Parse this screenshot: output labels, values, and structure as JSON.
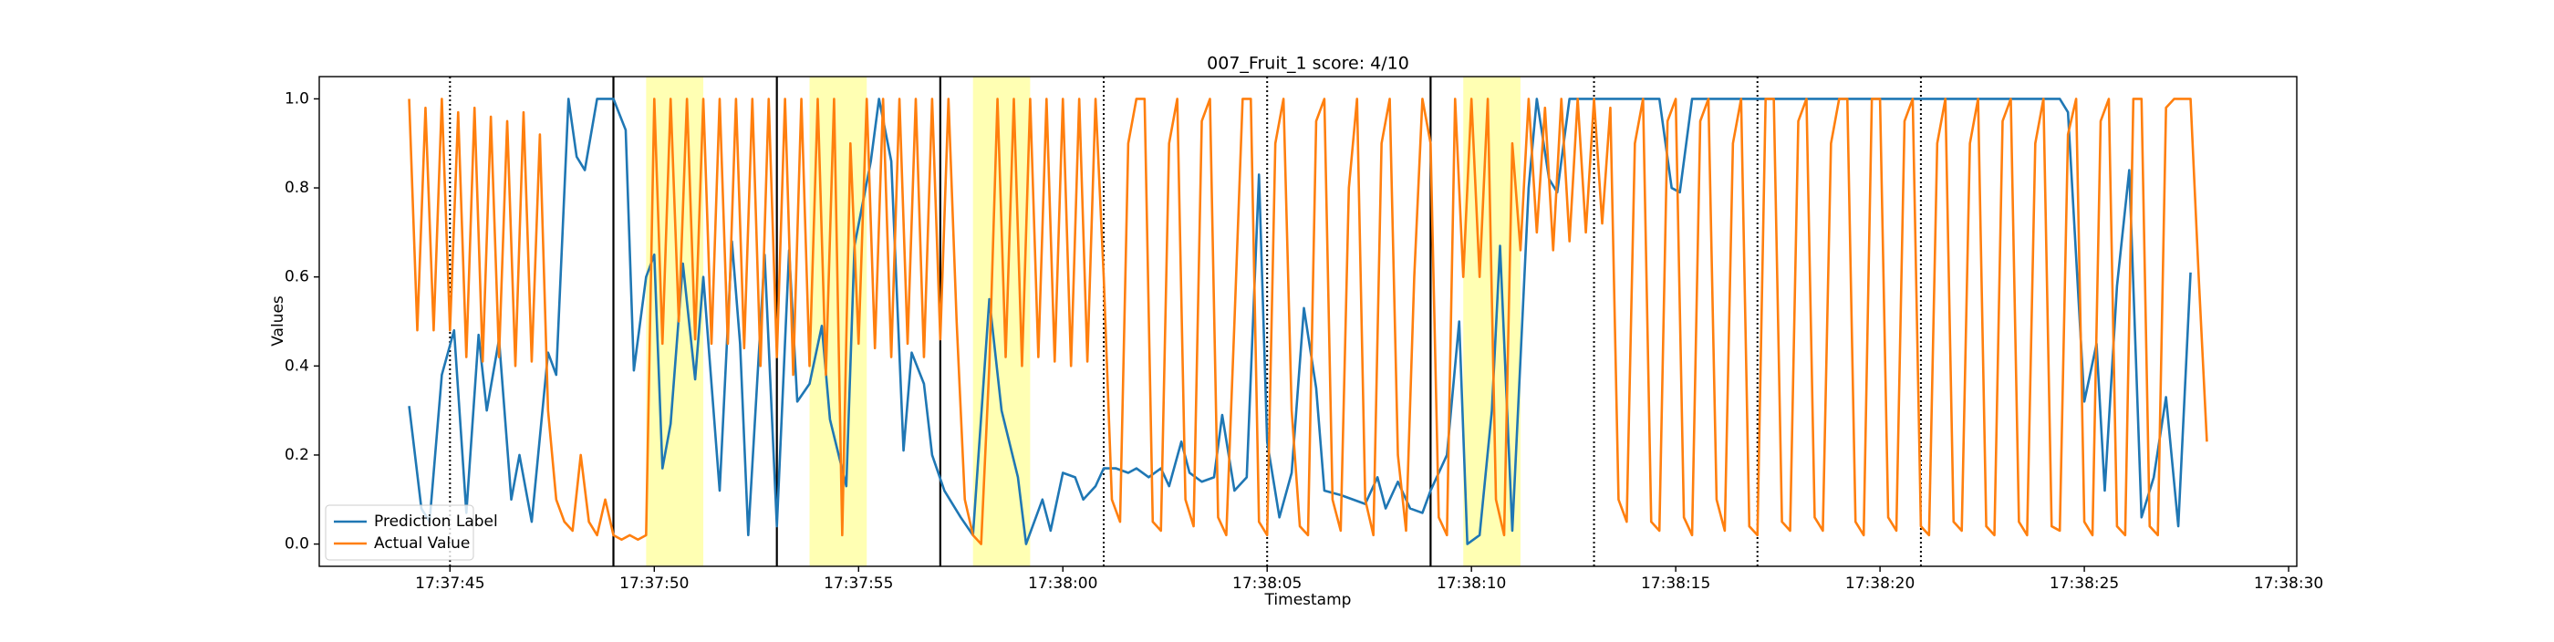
{
  "chart_data": {
    "type": "line",
    "title": "007_Fruit_1 score: 4/10",
    "x_label": "Timestamp",
    "y_label": "Values",
    "xlim": [
      63461.8,
      63510.2
    ],
    "ylim": [
      -0.05,
      1.05
    ],
    "xticks": [
      {
        "value": 63465,
        "label": "17:37:45"
      },
      {
        "value": 63470,
        "label": "17:37:50"
      },
      {
        "value": 63475,
        "label": "17:37:55"
      },
      {
        "value": 63480,
        "label": "17:38:00"
      },
      {
        "value": 63485,
        "label": "17:38:05"
      },
      {
        "value": 63490,
        "label": "17:38:10"
      },
      {
        "value": 63495,
        "label": "17:38:15"
      },
      {
        "value": 63500,
        "label": "17:38:20"
      },
      {
        "value": 63505,
        "label": "17:38:25"
      },
      {
        "value": 63510,
        "label": "17:38:30"
      }
    ],
    "yticks": [
      {
        "value": 0,
        "label": "0.0"
      },
      0.2,
      0.4,
      0.6,
      0.8,
      {
        "value": 1,
        "label": "1.0"
      }
    ],
    "grid": false,
    "legend": "lower left",
    "span_color": "#ffff99",
    "spans": [
      [
        63469.8,
        63471.2
      ],
      [
        63473.8,
        63475.2
      ],
      [
        63477.8,
        63479.2
      ],
      [
        63489.8,
        63491.2
      ]
    ],
    "vlines": [
      {
        "x": 63465,
        "style": "dotted"
      },
      {
        "x": 63469,
        "style": "solid"
      },
      {
        "x": 63473,
        "style": "solid"
      },
      {
        "x": 63477,
        "style": "solid"
      },
      {
        "x": 63481,
        "style": "dotted"
      },
      {
        "x": 63485,
        "style": "dotted"
      },
      {
        "x": 63489,
        "style": "solid"
      },
      {
        "x": 63493,
        "style": "dotted"
      },
      {
        "x": 63497,
        "style": "dotted"
      },
      {
        "x": 63501,
        "style": "dotted"
      }
    ],
    "series": [
      {
        "name": "Prediction Label",
        "color": "#1f77b4",
        "x": [
          63464.0,
          63464.3,
          63464.5,
          63464.8,
          63465.1,
          63465.4,
          63465.7,
          63465.9,
          63466.2,
          63466.5,
          63466.7,
          63467.0,
          63467.4,
          63467.6,
          63467.9,
          63468.1,
          63468.3,
          63468.6,
          63469.0,
          63469.3,
          63469.5,
          63469.8,
          63470.0,
          63470.2,
          63470.4,
          63470.7,
          63471.0,
          63471.2,
          63471.6,
          63471.9,
          63472.1,
          63472.3,
          63472.7,
          63473.0,
          63473.3,
          63473.5,
          63473.8,
          63474.1,
          63474.3,
          63474.7,
          63474.9,
          63475.3,
          63475.5,
          63475.8,
          63476.1,
          63476.3,
          63476.6,
          63476.8,
          63477.1,
          63477.5,
          63477.8,
          63478.2,
          63478.5,
          63478.9,
          63479.1,
          63479.5,
          63479.7,
          63480.0,
          63480.3,
          63480.5,
          63480.8,
          63481.0,
          63481.3,
          63481.6,
          63481.8,
          63482.1,
          63482.4,
          63482.6,
          63482.9,
          63483.1,
          63483.4,
          63483.7,
          63483.9,
          63484.2,
          63484.5,
          63484.8,
          63485.0,
          63485.3,
          63485.6,
          63485.9,
          63486.2,
          63486.4,
          63486.8,
          63487.1,
          63487.4,
          63487.7,
          63487.9,
          63488.2,
          63488.5,
          63488.8,
          63489.0,
          63489.4,
          63489.7,
          63489.9,
          63490.2,
          63490.5,
          63490.7,
          63491.0,
          63491.4,
          63491.6,
          63491.9,
          63492.1,
          63492.4,
          63494.6,
          63494.9,
          63495.1,
          63495.4,
          63504.4,
          63504.6,
          63505.0,
          63505.3,
          63505.5,
          63505.8,
          63506.1,
          63506.4,
          63506.7,
          63507.0,
          63507.3,
          63507.6
        ],
        "values": [
          0.31,
          0.08,
          0.05,
          0.38,
          0.48,
          0.07,
          0.47,
          0.3,
          0.46,
          0.1,
          0.2,
          0.05,
          0.43,
          0.38,
          1.0,
          0.87,
          0.84,
          1.0,
          1.0,
          0.93,
          0.39,
          0.6,
          0.65,
          0.17,
          0.27,
          0.63,
          0.37,
          0.6,
          0.12,
          0.68,
          0.45,
          0.02,
          0.65,
          0.04,
          0.66,
          0.32,
          0.36,
          0.49,
          0.28,
          0.13,
          0.67,
          0.86,
          1.0,
          0.86,
          0.21,
          0.43,
          0.36,
          0.2,
          0.12,
          0.06,
          0.02,
          0.55,
          0.3,
          0.15,
          0.0,
          0.1,
          0.03,
          0.16,
          0.15,
          0.1,
          0.13,
          0.17,
          0.17,
          0.16,
          0.17,
          0.15,
          0.17,
          0.13,
          0.23,
          0.16,
          0.14,
          0.15,
          0.29,
          0.12,
          0.15,
          0.83,
          0.23,
          0.06,
          0.16,
          0.53,
          0.35,
          0.12,
          0.11,
          0.1,
          0.09,
          0.15,
          0.08,
          0.14,
          0.08,
          0.07,
          0.12,
          0.2,
          0.5,
          0.0,
          0.02,
          0.3,
          0.67,
          0.03,
          0.8,
          1.0,
          0.82,
          0.79,
          1.0,
          1.0,
          0.8,
          0.79,
          1.0,
          1.0,
          0.97,
          0.32,
          0.45,
          0.12,
          0.58,
          0.84,
          0.06,
          0.15,
          0.33,
          0.04,
          0.61
        ]
      },
      {
        "name": "Actual Value",
        "color": "#ff7f0e",
        "x": [
          63464.0,
          63464.2,
          63464.4,
          63464.6,
          63464.8,
          63465.0,
          63465.2,
          63465.4,
          63465.6,
          63465.8,
          63466.0,
          63466.2,
          63466.4,
          63466.6,
          63466.8,
          63467.0,
          63467.2,
          63467.4,
          63467.6,
          63467.8,
          63468.0,
          63468.2,
          63468.4,
          63468.6,
          63468.8,
          63469.0,
          63469.2,
          63469.4,
          63469.6,
          63469.8,
          63470.0,
          63470.2,
          63470.4,
          63470.6,
          63470.8,
          63471.0,
          63471.2,
          63471.4,
          63471.6,
          63471.8,
          63472.0,
          63472.2,
          63472.4,
          63472.6,
          63472.8,
          63473.0,
          63473.2,
          63473.4,
          63473.6,
          63473.8,
          63474.0,
          63474.2,
          63474.4,
          63474.6,
          63474.8,
          63475.0,
          63475.2,
          63475.4,
          63475.6,
          63475.8,
          63476.0,
          63476.2,
          63476.4,
          63476.6,
          63476.8,
          63477.0,
          63477.2,
          63477.4,
          63477.6,
          63477.8,
          63478.0,
          63478.2,
          63478.4,
          63478.6,
          63478.8,
          63479.0,
          63479.2,
          63479.4,
          63479.6,
          63479.8,
          63480.0,
          63480.2,
          63480.4,
          63480.6,
          63480.8,
          63481.0,
          63481.2,
          63481.4,
          63481.6,
          63481.8,
          63482.0,
          63482.2,
          63482.4,
          63482.6,
          63482.8,
          63483.0,
          63483.2,
          63483.4,
          63483.6,
          63483.8,
          63484.0,
          63484.2,
          63484.4,
          63484.6,
          63484.8,
          63485.0,
          63485.2,
          63485.4,
          63485.6,
          63485.8,
          63486.0,
          63486.2,
          63486.4,
          63486.6,
          63486.8,
          63487.0,
          63487.2,
          63487.4,
          63487.6,
          63487.8,
          63488.0,
          63488.2,
          63488.4,
          63488.6,
          63488.8,
          63489.0,
          63489.2,
          63489.4,
          63489.6,
          63489.8,
          63490.0,
          63490.2,
          63490.4,
          63490.6,
          63490.8,
          63491.0,
          63491.2,
          63491.4,
          63491.6,
          63491.8,
          63492.0,
          63492.2,
          63492.4,
          63492.6,
          63492.8,
          63493.0,
          63493.2,
          63493.4,
          63493.6,
          63493.8,
          63494.0,
          63494.2,
          63494.4,
          63494.6,
          63494.8,
          63495.0,
          63495.2,
          63495.4,
          63495.6,
          63495.8,
          63496.0,
          63496.2,
          63496.4,
          63496.6,
          63496.8,
          63497.0,
          63497.2,
          63497.4,
          63497.6,
          63497.8,
          63498.0,
          63498.2,
          63498.4,
          63498.6,
          63498.8,
          63499.0,
          63499.2,
          63499.4,
          63499.6,
          63499.8,
          63500.0,
          63500.2,
          63500.4,
          63500.6,
          63500.8,
          63501.0,
          63501.2,
          63501.4,
          63501.6,
          63501.8,
          63502.0,
          63502.2,
          63502.4,
          63502.6,
          63502.8,
          63503.0,
          63503.2,
          63503.4,
          63503.6,
          63503.8,
          63504.0,
          63504.2,
          63504.4,
          63504.6,
          63504.8,
          63505.0,
          63505.2,
          63505.4,
          63505.6,
          63505.8,
          63506.0,
          63506.2,
          63506.4,
          63506.6,
          63506.8,
          63507.0,
          63507.2,
          63507.4,
          63507.6,
          63507.8,
          63508.0
        ],
        "values": [
          1.0,
          0.48,
          0.98,
          0.48,
          1.0,
          0.48,
          0.97,
          0.42,
          0.98,
          0.41,
          0.96,
          0.42,
          0.95,
          0.4,
          0.97,
          0.41,
          0.92,
          0.3,
          0.1,
          0.05,
          0.03,
          0.2,
          0.05,
          0.02,
          0.1,
          0.02,
          0.01,
          0.02,
          0.01,
          0.02,
          1.0,
          0.45,
          1.0,
          0.5,
          1.0,
          0.46,
          1.0,
          0.45,
          1.0,
          0.45,
          1.0,
          0.44,
          1.0,
          0.4,
          1.0,
          0.42,
          1.0,
          0.38,
          1.0,
          0.4,
          1.0,
          0.38,
          1.0,
          0.02,
          0.9,
          0.45,
          1.0,
          0.44,
          1.0,
          0.42,
          1.0,
          0.45,
          1.0,
          0.42,
          1.0,
          0.46,
          1.0,
          0.5,
          0.1,
          0.02,
          0.0,
          0.4,
          1.0,
          0.42,
          1.0,
          0.4,
          1.0,
          0.42,
          1.0,
          0.41,
          1.0,
          0.4,
          1.0,
          0.41,
          1.0,
          0.6,
          0.1,
          0.05,
          0.9,
          1.0,
          1.0,
          0.05,
          0.03,
          0.9,
          1.0,
          0.1,
          0.04,
          0.95,
          1.0,
          0.06,
          0.02,
          0.5,
          1.0,
          1.0,
          0.05,
          0.02,
          0.9,
          1.0,
          0.3,
          0.04,
          0.02,
          0.95,
          1.0,
          0.1,
          0.03,
          0.8,
          1.0,
          0.1,
          0.02,
          0.9,
          1.0,
          0.2,
          0.03,
          0.6,
          1.0,
          0.9,
          0.06,
          0.02,
          1.0,
          0.6,
          1.0,
          0.6,
          1.0,
          0.1,
          0.02,
          0.9,
          0.66,
          1.0,
          0.7,
          0.98,
          0.66,
          1.0,
          0.68,
          1.0,
          0.7,
          1.0,
          0.72,
          0.98,
          0.1,
          0.05,
          0.9,
          1.0,
          0.05,
          0.03,
          0.95,
          1.0,
          0.06,
          0.02,
          0.95,
          1.0,
          0.1,
          0.03,
          0.9,
          1.0,
          0.04,
          0.02,
          1.0,
          1.0,
          0.05,
          0.03,
          0.95,
          1.0,
          0.06,
          0.03,
          0.9,
          1.0,
          1.0,
          0.05,
          0.02,
          1.0,
          1.0,
          0.06,
          0.03,
          0.95,
          1.0,
          0.04,
          0.02,
          0.9,
          1.0,
          0.05,
          0.03,
          0.9,
          1.0,
          0.04,
          0.02,
          0.95,
          1.0,
          0.05,
          0.02,
          0.9,
          1.0,
          0.04,
          0.03,
          0.92,
          1.0,
          0.05,
          0.02,
          0.95,
          1.0,
          0.04,
          0.02,
          1.0,
          1.0,
          0.04,
          0.02,
          0.98,
          1.0,
          1.0,
          1.0,
          0.6,
          0.23
        ]
      }
    ]
  }
}
